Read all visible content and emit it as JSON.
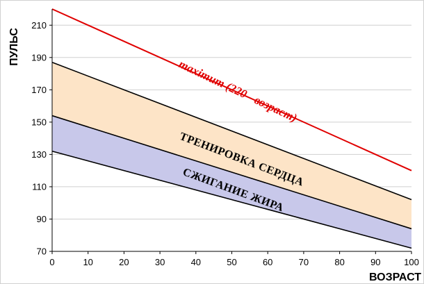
{
  "chart_data": {
    "type": "area",
    "title": "",
    "xlabel": "ВОЗРАСТ",
    "ylabel": "ПУЛЬС",
    "xlim": [
      0,
      100
    ],
    "ylim": [
      70,
      220
    ],
    "x_ticks": [
      0,
      10,
      20,
      30,
      40,
      50,
      60,
      70,
      80,
      90,
      100
    ],
    "y_ticks": [
      70,
      90,
      110,
      130,
      150,
      170,
      190,
      210
    ],
    "grid": "horizontal",
    "x": [
      0,
      100
    ],
    "series": [
      {
        "role": "maximum",
        "values": [
          220,
          120
        ],
        "color": "#e00000"
      },
      {
        "role": "training-upper",
        "values": [
          187,
          102
        ],
        "color": "#000000"
      },
      {
        "role": "training-lower",
        "values": [
          154,
          84
        ],
        "color": "#000000"
      },
      {
        "role": "fat-burn-lower",
        "values": [
          132,
          72
        ],
        "color": "#000000"
      }
    ],
    "bands": [
      {
        "name": "ТРЕНИРОВКА СЕРДЦА",
        "upper": "training-upper",
        "lower": "training-lower",
        "fill": "#fde4c7"
      },
      {
        "name": "СЖИГАНИЕ ЖИРА",
        "upper": "training-lower",
        "lower": "fat-burn-lower",
        "fill": "#c8c8ea"
      }
    ],
    "annotations": {
      "maximum": "maximum (220 - возраст)",
      "training": "ТРЕНИРОВКА СЕРДЦА",
      "fat_burn": "СЖИГАНИЕ ЖИРА"
    }
  }
}
